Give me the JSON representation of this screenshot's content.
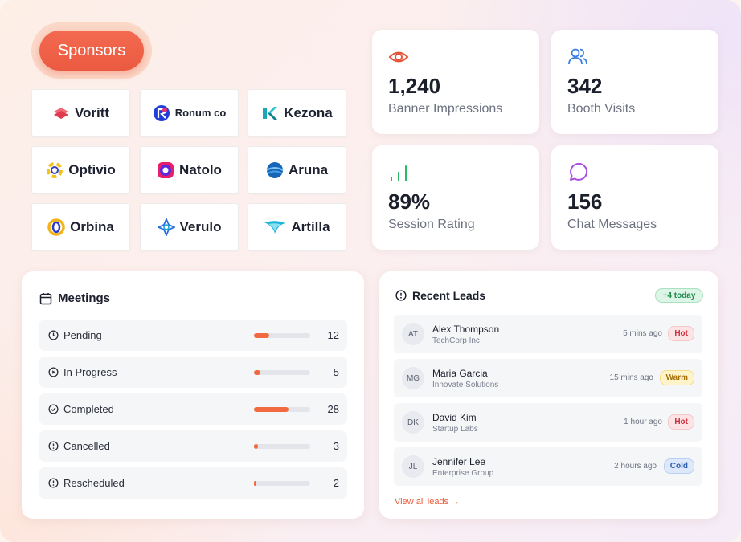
{
  "colors": {
    "accent": "#ea5a41",
    "bar_fill": "#f26a3f"
  },
  "sponsors": {
    "title": "Sponsors",
    "items": [
      {
        "name": "Voritt",
        "icon": "voritt-logo"
      },
      {
        "name": "Ronum co",
        "icon": "ronum-logo"
      },
      {
        "name": "Kezona",
        "icon": "kezona-logo"
      },
      {
        "name": "Optivio",
        "icon": "optivio-logo"
      },
      {
        "name": "Natolo",
        "icon": "natolo-logo"
      },
      {
        "name": "Aruna",
        "icon": "aruna-logo"
      },
      {
        "name": "Orbina",
        "icon": "orbina-logo"
      },
      {
        "name": "Verulo",
        "icon": "verulo-logo"
      },
      {
        "name": "Artilla",
        "icon": "artilla-logo"
      }
    ]
  },
  "stats": [
    {
      "value": "1,240",
      "label": "Banner Impressions",
      "icon": "eye-icon"
    },
    {
      "value": "342",
      "label": "Booth Visits",
      "icon": "users-icon"
    },
    {
      "value": "89%",
      "label": "Session Rating",
      "icon": "signal-bars-icon"
    },
    {
      "value": "156",
      "label": "Chat Messages",
      "icon": "chat-bubble-icon"
    }
  ],
  "meetings": {
    "title": "Meetings",
    "rows": [
      {
        "label": "Pending",
        "count": "12",
        "progress": 0.27,
        "icon": "clock-icon"
      },
      {
        "label": "In Progress",
        "count": "5",
        "progress": 0.11,
        "icon": "play-circle-icon"
      },
      {
        "label": "Completed",
        "count": "28",
        "progress": 0.62,
        "icon": "check-circle-icon"
      },
      {
        "label": "Cancelled",
        "count": "3",
        "progress": 0.07,
        "icon": "alert-circle-icon"
      },
      {
        "label": "Rescheduled",
        "count": "2",
        "progress": 0.04,
        "icon": "alert-circle-icon"
      }
    ]
  },
  "leads": {
    "title": "Recent Leads",
    "badge": "+4 today",
    "rows": [
      {
        "initials": "AT",
        "name": "Alex Thompson",
        "company": "TechCorp Inc",
        "time": "5 mins ago",
        "tag": "Hot",
        "tag_type": "hot"
      },
      {
        "initials": "MG",
        "name": "Maria Garcia",
        "company": "Innovate Solutions",
        "time": "15 mins ago",
        "tag": "Warm",
        "tag_type": "warm"
      },
      {
        "initials": "DK",
        "name": "David Kim",
        "company": "Startup Labs",
        "time": "1 hour ago",
        "tag": "Hot",
        "tag_type": "hot"
      },
      {
        "initials": "JL",
        "name": "Jennifer Lee",
        "company": "Enterprise Group",
        "time": "2 hours ago",
        "tag": "Cold",
        "tag_type": "cold"
      }
    ],
    "view_all": "View all leads →"
  }
}
